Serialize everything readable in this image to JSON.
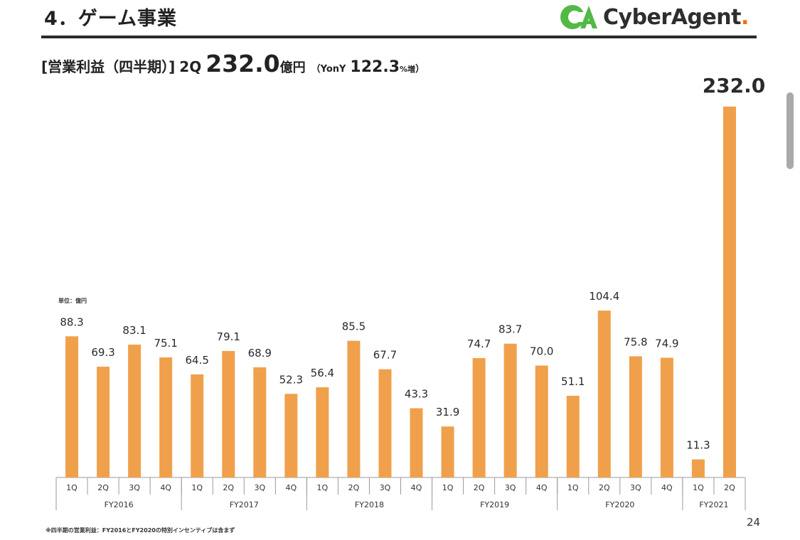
{
  "header": {
    "title": "4．ゲーム事業",
    "logo_text": "CyberAgent",
    "logo_dot": "."
  },
  "subtitle": {
    "label": "[営業利益（四半期）]",
    "quarter": "2Q",
    "value": "232.0",
    "unit": "億円",
    "yoy_prefix": "（YonY",
    "yoy_value": "122.3",
    "yoy_suffix": "%増",
    "close": "）"
  },
  "unit_label": "単位：億円",
  "footnote": "※四半期の営業利益：FY2016とFY2020の特別インセンティブは含まず",
  "page_number": "24",
  "colors": {
    "bar": "#F0A04B",
    "axis": "#9a9a9a",
    "logo_green": "#52b947",
    "logo_accent": "#ff6a00"
  },
  "icons": {
    "logo": "cyberagent-ca-logo-icon"
  },
  "chart_data": {
    "type": "bar",
    "title": "",
    "xlabel": "",
    "ylabel": "",
    "ylim": [
      0,
      232.0
    ],
    "grid": false,
    "legend": "none",
    "unit": "億円",
    "categories": [
      "1Q",
      "2Q",
      "3Q",
      "4Q",
      "1Q",
      "2Q",
      "3Q",
      "4Q",
      "1Q",
      "2Q",
      "3Q",
      "4Q",
      "1Q",
      "2Q",
      "3Q",
      "4Q",
      "1Q",
      "2Q",
      "3Q",
      "4Q",
      "1Q",
      "2Q"
    ],
    "groups": [
      {
        "label": "FY2016",
        "count": 4
      },
      {
        "label": "FY2017",
        "count": 4
      },
      {
        "label": "FY2018",
        "count": 4
      },
      {
        "label": "FY2019",
        "count": 4
      },
      {
        "label": "FY2020",
        "count": 4
      },
      {
        "label": "FY2021",
        "count": 2
      }
    ],
    "values": [
      88.3,
      69.3,
      83.1,
      75.1,
      64.5,
      79.1,
      68.9,
      52.3,
      56.4,
      85.5,
      67.7,
      43.3,
      31.9,
      74.7,
      83.7,
      70.0,
      51.1,
      104.4,
      75.8,
      74.9,
      11.3,
      232.0
    ],
    "value_labels": [
      "88.3",
      "69.3",
      "83.1",
      "75.1",
      "64.5",
      "79.1",
      "68.9",
      "52.3",
      "56.4",
      "85.5",
      "67.7",
      "43.3",
      "31.9",
      "74.7",
      "83.7",
      "70.0",
      "51.1",
      "104.4",
      "75.8",
      "74.9",
      "11.3",
      "232.0"
    ]
  }
}
